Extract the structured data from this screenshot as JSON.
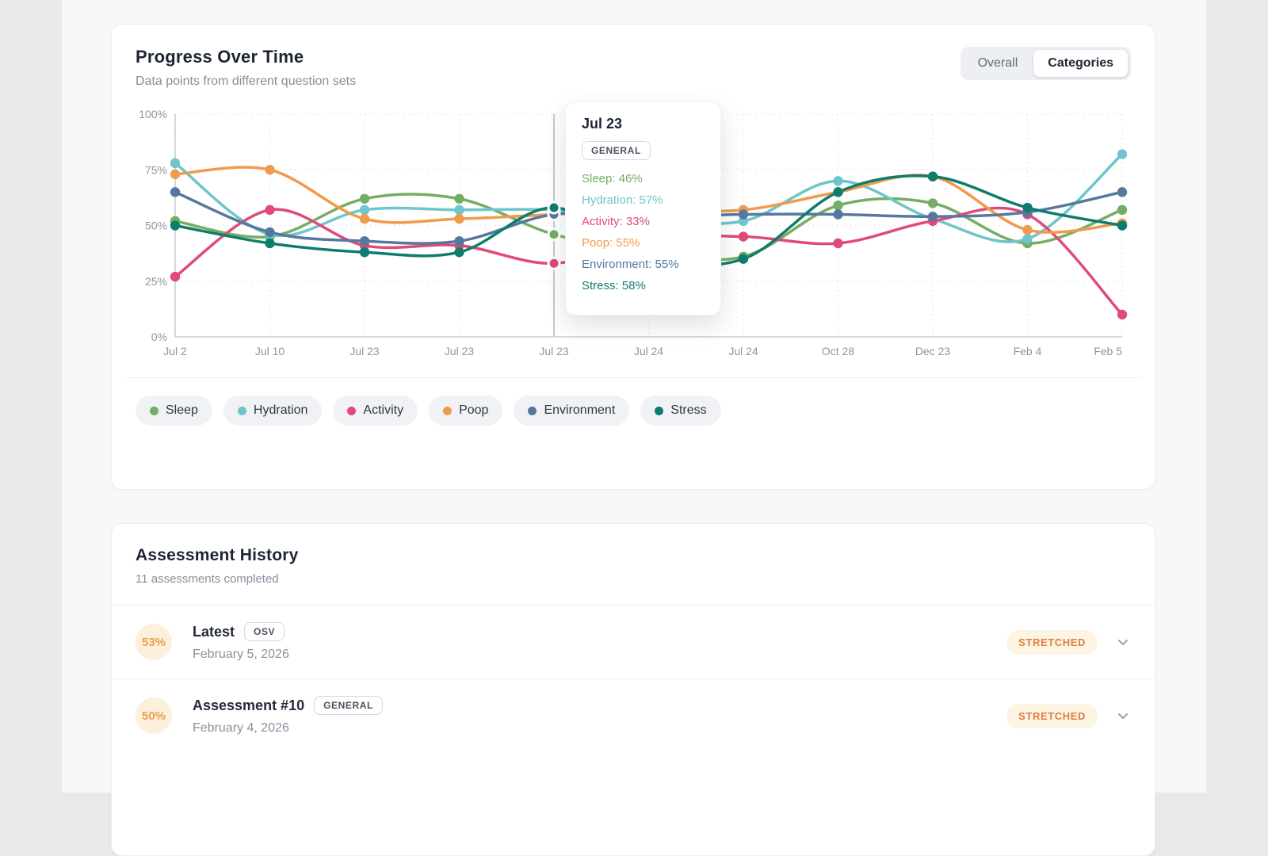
{
  "progress_card": {
    "title": "Progress Over Time",
    "subtitle": "Data points from different question sets",
    "toggle": {
      "overall_label": "Overall",
      "categories_label": "Categories",
      "active": "Categories"
    },
    "tooltip": {
      "title": "Jul 23",
      "badge": "GENERAL",
      "entries": [
        {
          "label": "Sleep",
          "value": "46%"
        },
        {
          "label": "Hydration",
          "value": "57%"
        },
        {
          "label": "Activity",
          "value": "33%"
        },
        {
          "label": "Poop",
          "value": "55%"
        },
        {
          "label": "Environment",
          "value": "55%"
        },
        {
          "label": "Stress",
          "value": "58%"
        }
      ]
    }
  },
  "chart_data": {
    "type": "line",
    "x_labels": [
      "Jul 2",
      "Jul 10",
      "Jul 23",
      "Jul 23",
      "Jul 23",
      "Jul 24",
      "Jul 24",
      "Oct 28",
      "Dec 23",
      "Feb 4",
      "Feb 5"
    ],
    "y_ticks": [
      "0%",
      "25%",
      "50%",
      "75%",
      "100%"
    ],
    "ylim": [
      0,
      100
    ],
    "grid": true,
    "active_index": 4,
    "series": [
      {
        "name": "Sleep",
        "color": "#74ad63",
        "values": [
          52,
          45,
          62,
          62,
          46,
          38,
          36,
          59,
          60,
          42,
          57
        ]
      },
      {
        "name": "Hydration",
        "color": "#6fc5cc",
        "values": [
          78,
          46,
          57,
          57,
          57,
          53,
          52,
          70,
          53,
          44,
          82
        ]
      },
      {
        "name": "Activity",
        "color": "#e04a78",
        "values": [
          27,
          57,
          41,
          41,
          33,
          44,
          45,
          42,
          52,
          55,
          10
        ]
      },
      {
        "name": "Poop",
        "color": "#f09a4e",
        "values": [
          73,
          75,
          53,
          53,
          55,
          57,
          57,
          65,
          72,
          48,
          51
        ]
      },
      {
        "name": "Environment",
        "color": "#56789f",
        "values": [
          65,
          47,
          43,
          43,
          55,
          54,
          55,
          55,
          54,
          56,
          65
        ]
      },
      {
        "name": "Stress",
        "color": "#0f7d6d",
        "values": [
          50,
          42,
          38,
          38,
          58,
          36,
          35,
          65,
          72,
          58,
          50
        ]
      }
    ]
  },
  "history_card": {
    "title": "Assessment History",
    "subtitle": "11 assessments completed",
    "items": [
      {
        "percent": "53%",
        "title": "Latest",
        "badge": "OSV",
        "date": "February 5, 2026",
        "status": "STRETCHED"
      },
      {
        "percent": "50%",
        "title": "Assessment #10",
        "badge": "GENERAL",
        "date": "February 4, 2026",
        "status": "STRETCHED"
      }
    ]
  },
  "colors": {
    "axis": "#c9cdd3",
    "grid": "#e7e9ec",
    "highlight_line": "#c4c8cf",
    "tick_label": "#8f95a0"
  }
}
